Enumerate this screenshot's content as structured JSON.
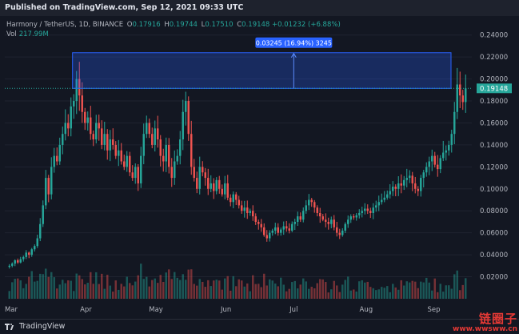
{
  "header": {
    "published_text": "Published on TradingView.com, Sep 12, 2021 09:33 UTC"
  },
  "legend": {
    "symbol": "Harmony / TetherUS, 1D, BINANCE",
    "open_key": "O",
    "open": "0.17916",
    "high_key": "H",
    "high": "0.19744",
    "low_key": "L",
    "low": "0.17510",
    "close_key": "C",
    "close": "0.19148",
    "change": "+0.01232 (+6.88%)",
    "volume_label": "Vol",
    "volume": "217.99M"
  },
  "measure_tool": {
    "label": "0.03245 (16.94%) 3245"
  },
  "price_badge": {
    "label": "0.19148",
    "value": 0.19148
  },
  "colors": {
    "up": "#26a69a",
    "down": "#ef5350",
    "background": "#131722",
    "measure_fill": "#2962ff",
    "badge": "#26a69a"
  },
  "footer": {
    "brand": "TradingView"
  },
  "watermark": {
    "text_cn": "链圈子",
    "url": "www.wwsww.cn"
  },
  "chart_data": {
    "type": "candlestick",
    "y_ticks": [
      "0.24000",
      "0.22000",
      "0.20000",
      "0.18000",
      "0.16000",
      "0.14000",
      "0.12000",
      "0.10000",
      "0.08000",
      "0.06000",
      "0.04000",
      "0.02000"
    ],
    "x_ticks": [
      "Mar",
      "Apr",
      "May",
      "Jun",
      "Jul",
      "Aug",
      "Sep"
    ],
    "ylim": [
      0.0,
      0.25
    ],
    "measure_range": [
      0.19148,
      0.22393
    ],
    "close_series": [
      0.03,
      0.032,
      0.035,
      0.033,
      0.036,
      0.038,
      0.042,
      0.04,
      0.045,
      0.048,
      0.055,
      0.068,
      0.085,
      0.11,
      0.095,
      0.12,
      0.13,
      0.125,
      0.14,
      0.15,
      0.16,
      0.155,
      0.175,
      0.18,
      0.2,
      0.185,
      0.17,
      0.16,
      0.165,
      0.15,
      0.145,
      0.16,
      0.155,
      0.14,
      0.15,
      0.135,
      0.145,
      0.14,
      0.13,
      0.135,
      0.125,
      0.12,
      0.13,
      0.115,
      0.11,
      0.12,
      0.105,
      0.13,
      0.15,
      0.16,
      0.15,
      0.14,
      0.155,
      0.145,
      0.13,
      0.125,
      0.14,
      0.12,
      0.11,
      0.125,
      0.13,
      0.145,
      0.17,
      0.18,
      0.15,
      0.12,
      0.11,
      0.1,
      0.12,
      0.115,
      0.11,
      0.1,
      0.105,
      0.098,
      0.108,
      0.1,
      0.095,
      0.105,
      0.092,
      0.088,
      0.095,
      0.09,
      0.085,
      0.08,
      0.083,
      0.078,
      0.08,
      0.075,
      0.07,
      0.068,
      0.065,
      0.058,
      0.055,
      0.06,
      0.062,
      0.065,
      0.06,
      0.063,
      0.066,
      0.064,
      0.062,
      0.068,
      0.07,
      0.075,
      0.072,
      0.08,
      0.085,
      0.09,
      0.088,
      0.083,
      0.078,
      0.075,
      0.072,
      0.07,
      0.068,
      0.072,
      0.065,
      0.06,
      0.058,
      0.062,
      0.068,
      0.072,
      0.075,
      0.074,
      0.076,
      0.078,
      0.08,
      0.082,
      0.08,
      0.078,
      0.083,
      0.085,
      0.088,
      0.09,
      0.092,
      0.095,
      0.098,
      0.102,
      0.1,
      0.105,
      0.103,
      0.108,
      0.11,
      0.112,
      0.105,
      0.1,
      0.098,
      0.11,
      0.115,
      0.12,
      0.125,
      0.13,
      0.122,
      0.118,
      0.128,
      0.133,
      0.135,
      0.14,
      0.15,
      0.17,
      0.195,
      0.185,
      0.179,
      0.19148
    ]
  }
}
